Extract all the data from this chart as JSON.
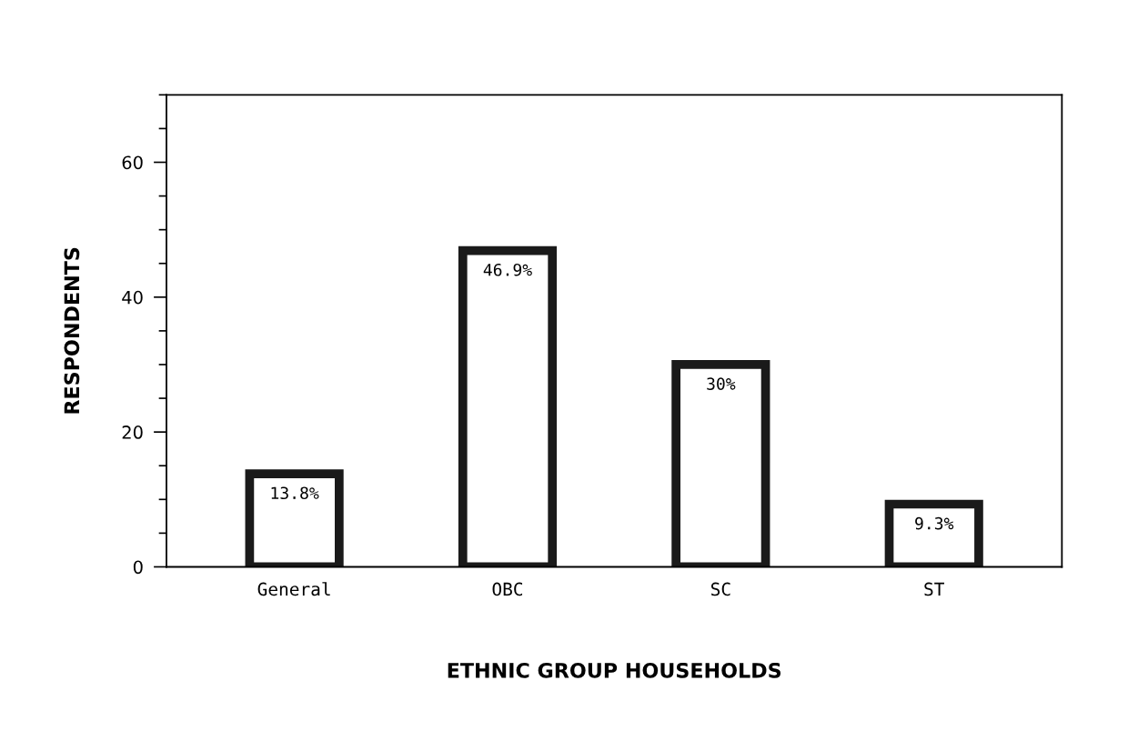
{
  "chart_data": {
    "type": "bar",
    "xlabel": "ETHNIC GROUP HOUSEHOLDS",
    "ylabel": "RESPONDENTS",
    "categories": [
      "General",
      "OBC",
      "SC",
      "ST"
    ],
    "values": [
      13.8,
      46.9,
      30,
      9.3
    ],
    "value_labels": [
      "13.8%",
      "46.9%",
      "30%",
      "9.3%"
    ],
    "color": "#1a1a1a",
    "ylim": [
      0,
      70
    ],
    "yticks": [
      0,
      {
        "value": 5,
        "label": null
      },
      {
        "value": 10,
        "label": null
      },
      {
        "value": 15,
        "label": null
      },
      20,
      {
        "value": 25,
        "label": null
      },
      {
        "value": 30,
        "label": null
      },
      {
        "value": 35,
        "label": null
      },
      40,
      {
        "value": 45,
        "label": null
      },
      {
        "value": 50,
        "label": null
      },
      {
        "value": 55,
        "label": null
      },
      60,
      {
        "value": 65,
        "label": null
      },
      {
        "value": 70,
        "label": null
      }
    ],
    "grid": false
  }
}
